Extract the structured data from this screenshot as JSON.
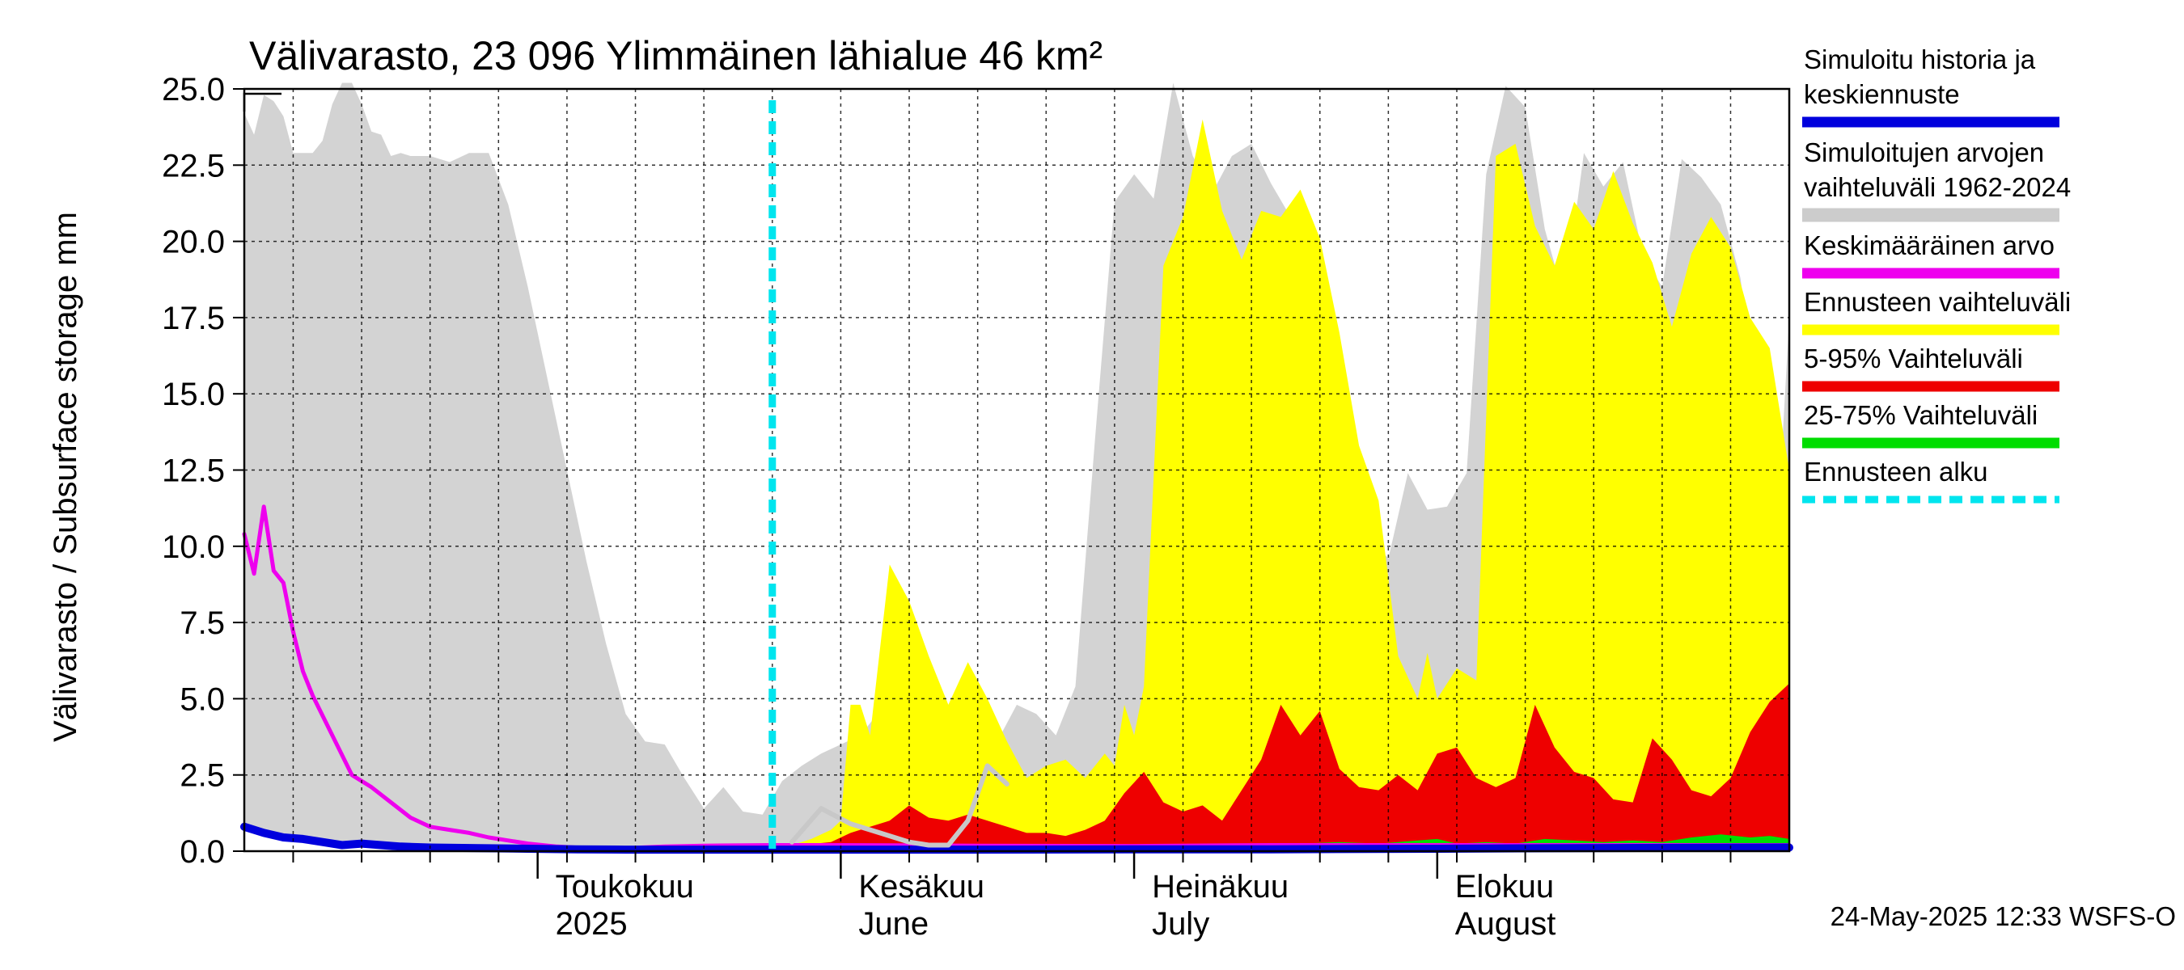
{
  "chart_data": {
    "type": "area",
    "title": "Välivarasto, 23 096 Ylimmäinen lähialue 46 km²",
    "ylabel": "Välivarasto / Subsurface storage  mm",
    "ylim": [
      0,
      25
    ],
    "yticks": [
      "0.0",
      "2.5",
      "5.0",
      "7.5",
      "10.0",
      "12.5",
      "15.0",
      "17.5",
      "20.0",
      "22.5",
      "25.0"
    ],
    "ytick_values": [
      0,
      2.5,
      5,
      7.5,
      10,
      12.5,
      15,
      17.5,
      20,
      22.5,
      25
    ],
    "x_start": "2025-04-01",
    "x_end": "2025-09-06",
    "forecast_start": "2025-05-25",
    "grid": true,
    "months": [
      {
        "date": "2025-05-01",
        "line1": "Toukokuu",
        "line2": "2025"
      },
      {
        "date": "2025-06-01",
        "line1": "Kesäkuu",
        "line2": "June"
      },
      {
        "date": "2025-07-01",
        "line1": "Heinäkuu",
        "line2": "July"
      },
      {
        "date": "2025-08-01",
        "line1": "Elokuu",
        "line2": "August"
      }
    ],
    "legend": [
      {
        "label_lines": [
          "Simuloitu historia ja",
          "keskiennuste"
        ],
        "color": "#0000dd"
      },
      {
        "label_lines": [
          "Simuloitujen arvojen",
          "vaihteluväli 1962-2024"
        ],
        "color": "#cccccc"
      },
      {
        "label_lines": [
          "Keskimääräinen arvo"
        ],
        "color": "#ee00ee"
      },
      {
        "label_lines": [
          "Ennusteen vaihteluväli"
        ],
        "color": "#ffff00"
      },
      {
        "label_lines": [
          "5-95% Vaihteluväli"
        ],
        "color": "#ee0000"
      },
      {
        "label_lines": [
          "25-75% Vaihteluväli"
        ],
        "color": "#00dd00"
      },
      {
        "label_lines": [
          "Ennusteen alku"
        ],
        "color": "#00e5ee",
        "dashed": true
      }
    ],
    "series": [
      {
        "name": "Simuloitujen arvojen vaihteluväli 1962-2024",
        "kind": "band",
        "color": "#d3d3d3",
        "x": [
          "2025-04-01",
          "2025-04-02",
          "2025-04-03",
          "2025-04-04",
          "2025-04-05",
          "2025-04-06",
          "2025-04-07",
          "2025-04-08",
          "2025-04-09",
          "2025-04-10",
          "2025-04-11",
          "2025-04-12",
          "2025-04-13",
          "2025-04-14",
          "2025-04-15",
          "2025-04-16",
          "2025-04-17",
          "2025-04-18",
          "2025-04-19",
          "2025-04-20",
          "2025-04-22",
          "2025-04-24",
          "2025-04-26",
          "2025-04-28",
          "2025-04-30",
          "2025-05-02",
          "2025-05-04",
          "2025-05-06",
          "2025-05-08",
          "2025-05-10",
          "2025-05-12",
          "2025-05-14",
          "2025-05-16",
          "2025-05-18",
          "2025-05-20",
          "2025-05-22",
          "2025-05-24",
          "2025-05-26",
          "2025-05-28",
          "2025-05-30",
          "2025-06-01",
          "2025-06-03",
          "2025-06-05",
          "2025-06-07",
          "2025-06-09",
          "2025-06-11",
          "2025-06-13",
          "2025-06-15",
          "2025-06-17",
          "2025-06-19",
          "2025-06-21",
          "2025-06-23",
          "2025-06-25",
          "2025-06-27",
          "2025-06-29",
          "2025-07-01",
          "2025-07-03",
          "2025-07-05",
          "2025-07-07",
          "2025-07-09",
          "2025-07-11",
          "2025-07-13",
          "2025-07-15",
          "2025-07-17",
          "2025-07-19",
          "2025-07-21",
          "2025-07-23",
          "2025-07-25",
          "2025-07-27",
          "2025-07-29",
          "2025-07-31",
          "2025-08-02",
          "2025-08-04",
          "2025-08-06",
          "2025-08-08",
          "2025-08-10",
          "2025-08-12",
          "2025-08-14",
          "2025-08-16",
          "2025-08-18",
          "2025-08-20",
          "2025-08-22",
          "2025-08-24",
          "2025-08-26",
          "2025-08-28",
          "2025-08-30",
          "2025-09-01",
          "2025-09-03",
          "2025-09-05",
          "2025-09-06"
        ],
        "upper": [
          24.2,
          23.5,
          24.8,
          24.6,
          24.1,
          22.9,
          22.9,
          22.9,
          23.3,
          24.5,
          25.2,
          25.2,
          24.5,
          23.6,
          23.5,
          22.8,
          22.9,
          22.8,
          22.8,
          22.8,
          22.6,
          22.9,
          22.9,
          21.2,
          18.5,
          15.5,
          12.5,
          9.5,
          6.8,
          4.5,
          3.6,
          3.5,
          2.4,
          1.4,
          2.1,
          1.3,
          1.2,
          2.3,
          2.8,
          3.2,
          3.5,
          3.8,
          4.6,
          5.2,
          4.2,
          3.2,
          4.4,
          3.8,
          3.6,
          4.8,
          4.5,
          3.8,
          5.4,
          13.5,
          21.3,
          22.2,
          21.4,
          25.2,
          22.8,
          21.6,
          22.8,
          23.2,
          21.9,
          20.8,
          18.8,
          16.5,
          12.2,
          10.3,
          9.6,
          12.4,
          11.2,
          11.3,
          12.4,
          22.2,
          25.1,
          24.4,
          20.4,
          18.1,
          22.9,
          21.8,
          22.6,
          19.6,
          18.5,
          22.7,
          22.1,
          21.2,
          18.8,
          14.2,
          11.7,
          17.5
        ],
        "lower": [
          0.8,
          0.7,
          0.6,
          0.55,
          0.5,
          0.45,
          0.4,
          0.35,
          0.3,
          0.3,
          0.28,
          0.25,
          0.22,
          0.2,
          0.18,
          0.16,
          0.14,
          0.12,
          0.1,
          0.1,
          0.1,
          0.09,
          0.08,
          0.07,
          0.06,
          0.05,
          0.05,
          0.05,
          0.05,
          0.05,
          0.05,
          0.05,
          0.05,
          0.05,
          0.05,
          0.05,
          0.05,
          0.05,
          0.05,
          0.05,
          0.05,
          0.05,
          0.05,
          0.05,
          0.05,
          0.05,
          0.05,
          0.05,
          0.05,
          0.05,
          0.05,
          0.05,
          0.05,
          0.05,
          0.05,
          0.05,
          0.05,
          0.05,
          0.05,
          0.05,
          0.05,
          0.05,
          0.05,
          0.05,
          0.05,
          0.05,
          0.05,
          0.05,
          0.05,
          0.05,
          0.05,
          0.05,
          0.05,
          0.05,
          0.05,
          0.05,
          0.05,
          0.05,
          0.05,
          0.05,
          0.05,
          0.05,
          0.05,
          0.05,
          0.05,
          0.05,
          0.05,
          0.05,
          0.05,
          0.05
        ]
      },
      {
        "name": "Ennusteen vaihteluväli",
        "kind": "band",
        "color": "#ffff00",
        "x": [
          "2025-05-25",
          "2025-05-27",
          "2025-05-29",
          "2025-05-31",
          "2025-06-01",
          "2025-06-02",
          "2025-06-03",
          "2025-06-04",
          "2025-06-06",
          "2025-06-08",
          "2025-06-10",
          "2025-06-12",
          "2025-06-14",
          "2025-06-16",
          "2025-06-18",
          "2025-06-20",
          "2025-06-22",
          "2025-06-24",
          "2025-06-26",
          "2025-06-28",
          "2025-06-29",
          "2025-06-30",
          "2025-07-01",
          "2025-07-02",
          "2025-07-04",
          "2025-07-06",
          "2025-07-08",
          "2025-07-10",
          "2025-07-12",
          "2025-07-14",
          "2025-07-16",
          "2025-07-18",
          "2025-07-20",
          "2025-07-22",
          "2025-07-24",
          "2025-07-26",
          "2025-07-28",
          "2025-07-30",
          "2025-07-31",
          "2025-08-01",
          "2025-08-03",
          "2025-08-05",
          "2025-08-07",
          "2025-08-09",
          "2025-08-11",
          "2025-08-13",
          "2025-08-15",
          "2025-08-17",
          "2025-08-19",
          "2025-08-21",
          "2025-08-23",
          "2025-08-25",
          "2025-08-27",
          "2025-08-29",
          "2025-08-31",
          "2025-09-02",
          "2025-09-04",
          "2025-09-06"
        ],
        "upper": [
          0.1,
          0.2,
          0.4,
          0.7,
          1.0,
          4.8,
          4.8,
          3.8,
          9.4,
          8.2,
          6.4,
          4.8,
          6.2,
          5.0,
          3.6,
          2.4,
          2.8,
          3.0,
          2.4,
          3.2,
          2.8,
          4.8,
          3.8,
          5.4,
          19.2,
          20.8,
          24.0,
          21.0,
          19.4,
          21.0,
          20.8,
          21.7,
          20.1,
          17.0,
          13.3,
          11.5,
          6.4,
          5.0,
          6.5,
          5.0,
          6.0,
          5.6,
          22.8,
          23.2,
          20.5,
          19.2,
          21.3,
          20.4,
          22.3,
          20.6,
          19.3,
          17.2,
          19.6,
          20.8,
          19.8,
          17.5,
          16.5,
          12.5
        ],
        "lower": [
          0.05,
          0.05,
          0.05,
          0.05,
          0.05,
          0.05,
          0.05,
          0.05,
          0.05,
          0.05,
          0.05,
          0.05,
          0.05,
          0.05,
          0.05,
          0.05,
          0.05,
          0.05,
          0.05,
          0.05,
          0.05,
          0.05,
          0.05,
          0.05,
          0.05,
          0.05,
          0.05,
          0.05,
          0.05,
          0.05,
          0.05,
          0.05,
          0.05,
          0.05,
          0.05,
          0.05,
          0.05,
          0.05,
          0.05,
          0.05,
          0.05,
          0.05,
          0.05,
          0.05,
          0.05,
          0.05,
          0.05,
          0.05,
          0.05,
          0.05,
          0.05,
          0.05,
          0.05,
          0.05,
          0.05,
          0.05,
          0.05,
          0.05
        ]
      },
      {
        "name": "5-95% Vaihteluväli",
        "kind": "band",
        "color": "#ee0000",
        "x": [
          "2025-05-25",
          "2025-05-28",
          "2025-05-31",
          "2025-06-02",
          "2025-06-04",
          "2025-06-06",
          "2025-06-08",
          "2025-06-10",
          "2025-06-12",
          "2025-06-14",
          "2025-06-16",
          "2025-06-18",
          "2025-06-20",
          "2025-06-22",
          "2025-06-24",
          "2025-06-26",
          "2025-06-28",
          "2025-06-30",
          "2025-07-02",
          "2025-07-04",
          "2025-07-06",
          "2025-07-08",
          "2025-07-10",
          "2025-07-12",
          "2025-07-14",
          "2025-07-16",
          "2025-07-18",
          "2025-07-20",
          "2025-07-22",
          "2025-07-24",
          "2025-07-26",
          "2025-07-28",
          "2025-07-30",
          "2025-08-01",
          "2025-08-03",
          "2025-08-05",
          "2025-08-07",
          "2025-08-09",
          "2025-08-11",
          "2025-08-13",
          "2025-08-15",
          "2025-08-17",
          "2025-08-19",
          "2025-08-21",
          "2025-08-23",
          "2025-08-25",
          "2025-08-27",
          "2025-08-29",
          "2025-08-31",
          "2025-09-02",
          "2025-09-04",
          "2025-09-06"
        ],
        "upper": [
          0.1,
          0.2,
          0.3,
          0.6,
          0.8,
          1.0,
          1.5,
          1.1,
          1.0,
          1.2,
          1.0,
          0.8,
          0.6,
          0.6,
          0.5,
          0.7,
          1.0,
          1.9,
          2.6,
          1.6,
          1.3,
          1.5,
          1.0,
          2.0,
          3.0,
          4.8,
          3.8,
          4.6,
          2.7,
          2.1,
          2.0,
          2.5,
          2.0,
          3.2,
          3.4,
          2.4,
          2.1,
          2.4,
          4.8,
          3.4,
          2.6,
          2.4,
          1.7,
          1.6,
          3.7,
          3.0,
          2.0,
          1.8,
          2.4,
          3.9,
          4.9,
          5.5
        ],
        "lower": [
          0.05,
          0.05,
          0.05,
          0.05,
          0.05,
          0.05,
          0.05,
          0.05,
          0.05,
          0.05,
          0.05,
          0.05,
          0.05,
          0.05,
          0.05,
          0.05,
          0.05,
          0.05,
          0.05,
          0.05,
          0.05,
          0.05,
          0.05,
          0.05,
          0.05,
          0.05,
          0.05,
          0.05,
          0.05,
          0.05,
          0.05,
          0.05,
          0.05,
          0.05,
          0.05,
          0.05,
          0.05,
          0.05,
          0.05,
          0.05,
          0.05,
          0.05,
          0.05,
          0.05,
          0.05,
          0.05,
          0.05,
          0.05,
          0.05,
          0.05,
          0.05,
          0.05
        ]
      },
      {
        "name": "25-75% Vaihteluväli",
        "kind": "band",
        "color": "#00dd00",
        "x": [
          "2025-07-14",
          "2025-07-18",
          "2025-07-22",
          "2025-07-26",
          "2025-07-30",
          "2025-08-01",
          "2025-08-03",
          "2025-08-06",
          "2025-08-09",
          "2025-08-12",
          "2025-08-15",
          "2025-08-18",
          "2025-08-21",
          "2025-08-24",
          "2025-08-27",
          "2025-08-30",
          "2025-09-02",
          "2025-09-04",
          "2025-09-06"
        ],
        "upper": [
          0.12,
          0.25,
          0.3,
          0.25,
          0.35,
          0.4,
          0.25,
          0.3,
          0.25,
          0.4,
          0.35,
          0.3,
          0.35,
          0.3,
          0.45,
          0.55,
          0.45,
          0.5,
          0.4
        ],
        "lower": [
          0.1,
          0.1,
          0.1,
          0.1,
          0.1,
          0.1,
          0.1,
          0.1,
          0.1,
          0.1,
          0.1,
          0.1,
          0.1,
          0.1,
          0.1,
          0.1,
          0.1,
          0.1,
          0.1
        ]
      },
      {
        "name": "Keskimääräinen arvo",
        "kind": "line",
        "color": "#ee00ee",
        "width": 5,
        "x": [
          "2025-04-01",
          "2025-04-02",
          "2025-04-03",
          "2025-04-04",
          "2025-04-05",
          "2025-04-06",
          "2025-04-07",
          "2025-04-08",
          "2025-04-10",
          "2025-04-12",
          "2025-04-14",
          "2025-04-16",
          "2025-04-18",
          "2025-04-20",
          "2025-04-22",
          "2025-04-24",
          "2025-04-26",
          "2025-04-28",
          "2025-04-30",
          "2025-05-03",
          "2025-05-06",
          "2025-05-10",
          "2025-05-14",
          "2025-05-18",
          "2025-05-25",
          "2025-06-01",
          "2025-06-15",
          "2025-07-01",
          "2025-07-15",
          "2025-08-01",
          "2025-08-15",
          "2025-09-06"
        ],
        "y": [
          10.4,
          9.1,
          11.3,
          9.2,
          8.8,
          7.2,
          5.9,
          5.1,
          3.8,
          2.5,
          2.1,
          1.6,
          1.1,
          0.8,
          0.7,
          0.6,
          0.45,
          0.35,
          0.25,
          0.15,
          0.1,
          0.1,
          0.15,
          0.18,
          0.2,
          0.2,
          0.18,
          0.17,
          0.2,
          0.2,
          0.2,
          0.2
        ]
      },
      {
        "name": "Simuloitu historia ja keskiennuste",
        "kind": "line",
        "color": "#0000dd",
        "width": 10,
        "x": [
          "2025-04-01",
          "2025-04-03",
          "2025-04-05",
          "2025-04-07",
          "2025-04-09",
          "2025-04-11",
          "2025-04-13",
          "2025-04-15",
          "2025-04-17",
          "2025-04-20",
          "2025-04-25",
          "2025-04-30",
          "2025-05-05",
          "2025-05-10",
          "2025-05-15",
          "2025-05-20",
          "2025-05-25",
          "2025-06-01",
          "2025-06-15",
          "2025-07-01",
          "2025-07-15",
          "2025-08-01",
          "2025-08-15",
          "2025-09-06"
        ],
        "y": [
          0.8,
          0.6,
          0.45,
          0.4,
          0.3,
          0.2,
          0.25,
          0.2,
          0.15,
          0.12,
          0.1,
          0.08,
          0.06,
          0.05,
          0.05,
          0.05,
          0.05,
          0.05,
          0.05,
          0.06,
          0.06,
          0.08,
          0.1,
          0.12
        ]
      },
      {
        "name": "Simuloitu (harmaa viiva)",
        "kind": "line",
        "color": "#c8c8c8",
        "width": 6,
        "x": [
          "2025-05-27",
          "2025-05-30",
          "2025-06-02",
          "2025-06-05",
          "2025-06-08",
          "2025-06-10",
          "2025-06-12",
          "2025-06-14",
          "2025-06-16",
          "2025-06-18"
        ],
        "y": [
          0.3,
          1.4,
          0.9,
          0.6,
          0.3,
          0.2,
          0.2,
          1.0,
          2.8,
          2.2
        ]
      }
    ],
    "footer": "24-May-2025 12:33 WSFS-O"
  }
}
